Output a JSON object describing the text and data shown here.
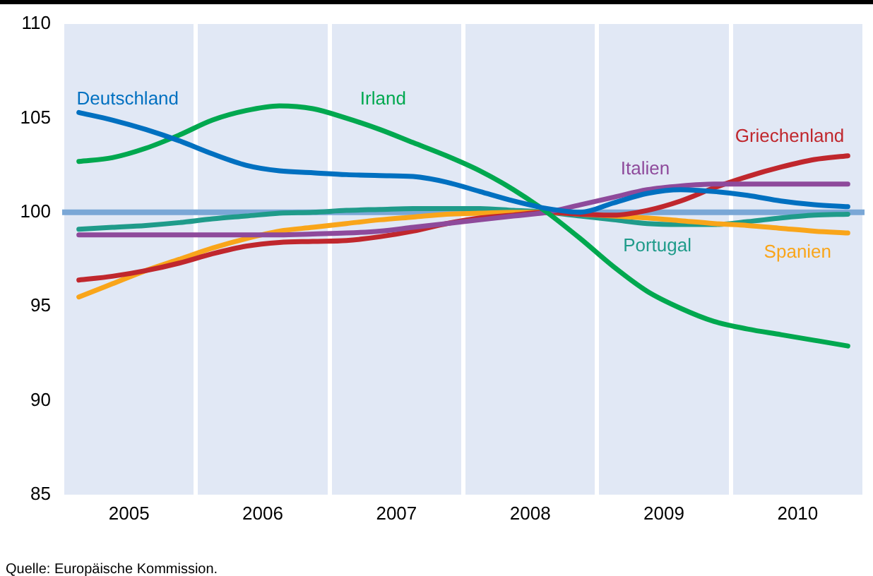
{
  "chart_data": {
    "type": "line",
    "legend": false,
    "grid": "x",
    "marker": "none",
    "line_style": "solid",
    "x": [
      2005.125,
      2005.375,
      2005.625,
      2005.875,
      2006.125,
      2006.375,
      2006.625,
      2006.875,
      2007.125,
      2007.375,
      2007.625,
      2007.875,
      2008.125,
      2008.375,
      2008.625,
      2008.875,
      2009.125,
      2009.375,
      2009.625,
      2009.875,
      2010.125,
      2010.375,
      2010.625,
      2010.875
    ],
    "xlim": [
      2005,
      2011
    ],
    "xticks": [
      {
        "value": 2005,
        "label": null
      },
      {
        "value": 2005.5,
        "label": "2005"
      },
      {
        "value": 2006,
        "label": null
      },
      {
        "value": 2006.5,
        "label": "2006"
      },
      {
        "value": 2007,
        "label": null
      },
      {
        "value": 2007.5,
        "label": "2007"
      },
      {
        "value": 2008,
        "label": null
      },
      {
        "value": 2008.5,
        "label": "2008"
      },
      {
        "value": 2009,
        "label": null
      },
      {
        "value": 2009.5,
        "label": "2009"
      },
      {
        "value": 2010,
        "label": null
      },
      {
        "value": 2010.5,
        "label": "2010"
      },
      {
        "value": 2011,
        "label": null
      }
    ],
    "ylim": [
      85,
      110
    ],
    "yticks": [
      85,
      90,
      95,
      100,
      105,
      110
    ],
    "ref_lines": [
      {
        "axis": "y",
        "value": 100,
        "color": "#7aa7d6"
      }
    ],
    "series": [
      {
        "name": "Deutschland",
        "color": "#0070c0",
        "values": [
          105.3,
          104.9,
          104.4,
          103.8,
          103.1,
          102.5,
          102.2,
          102.1,
          102.0,
          101.95,
          101.9,
          101.6,
          101.1,
          100.6,
          100.2,
          100.0,
          100.5,
          101.0,
          101.2,
          101.1,
          100.9,
          100.6,
          100.4,
          100.3
        ]
      },
      {
        "name": "Irland",
        "color": "#00a84f",
        "values": [
          102.7,
          102.9,
          103.4,
          104.1,
          104.9,
          105.4,
          105.65,
          105.5,
          105.0,
          104.4,
          103.7,
          103.0,
          102.2,
          101.2,
          100.0,
          98.6,
          97.1,
          95.8,
          94.9,
          94.2,
          93.8,
          93.5,
          93.2,
          92.9
        ]
      },
      {
        "name": "Italien",
        "color": "#8e4a9b",
        "values": [
          98.8,
          98.8,
          98.8,
          98.8,
          98.8,
          98.8,
          98.8,
          98.85,
          98.9,
          99.0,
          99.2,
          99.4,
          99.6,
          99.8,
          100.0,
          100.4,
          100.8,
          101.2,
          101.4,
          101.5,
          101.5,
          101.5,
          101.5,
          101.5
        ]
      },
      {
        "name": "Griechenland",
        "color": "#c0272d",
        "values": [
          96.4,
          96.6,
          96.9,
          97.3,
          97.8,
          98.2,
          98.4,
          98.45,
          98.5,
          98.7,
          99.0,
          99.4,
          99.7,
          99.85,
          100.0,
          99.9,
          99.85,
          100.1,
          100.6,
          101.3,
          101.9,
          102.4,
          102.8,
          103.0
        ]
      },
      {
        "name": "Spanien",
        "color": "#f9a51a",
        "values": [
          95.5,
          96.2,
          96.9,
          97.5,
          98.1,
          98.6,
          99.0,
          99.2,
          99.4,
          99.6,
          99.75,
          99.9,
          99.95,
          100.0,
          100.0,
          99.9,
          99.8,
          99.7,
          99.55,
          99.4,
          99.3,
          99.15,
          99.0,
          98.9
        ]
      },
      {
        "name": "Portugal",
        "color": "#1f9b8a",
        "values": [
          99.1,
          99.2,
          99.3,
          99.45,
          99.65,
          99.8,
          99.95,
          100.0,
          100.1,
          100.15,
          100.2,
          100.2,
          100.2,
          100.1,
          100.0,
          99.8,
          99.6,
          99.4,
          99.35,
          99.35,
          99.5,
          99.7,
          99.85,
          99.9
        ]
      }
    ],
    "annotations": [
      "Quelle: Europäische Kommission."
    ]
  }
}
